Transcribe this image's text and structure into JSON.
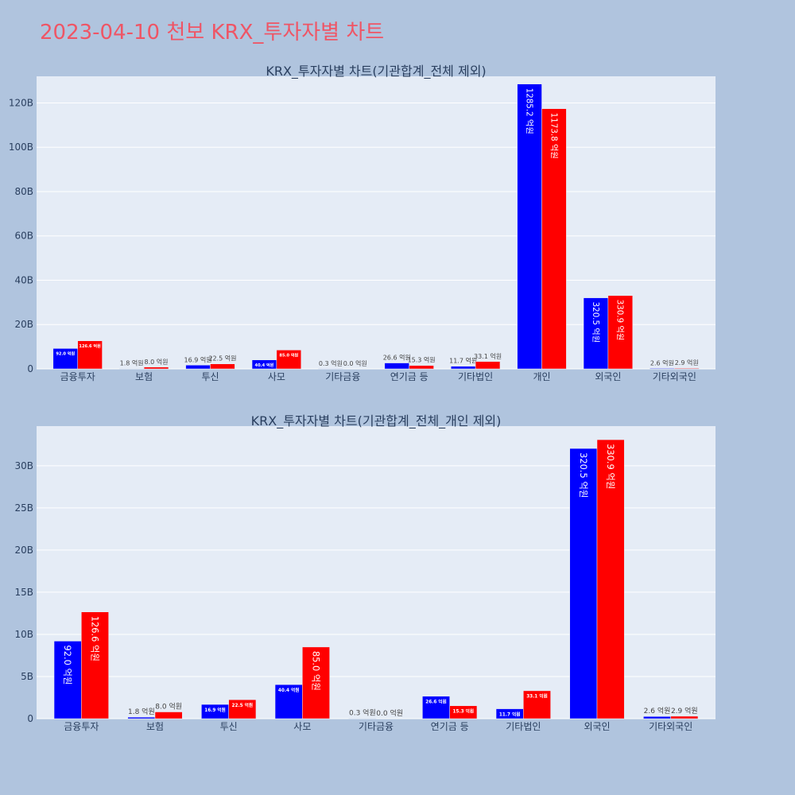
{
  "title": "2023-04-10 천보 KRX_투자자별 차트",
  "colors": {
    "background": "#b0c4de",
    "plot_bg": "#e5ecf6",
    "series_a": "#0000ff",
    "series_b": "#ff0000",
    "title": "#ef5565",
    "text": "#2a3f5f"
  },
  "chart_data": [
    {
      "type": "bar",
      "title": "KRX_투자자별 차트(기관합계_전체 제외)",
      "categories": [
        "금융투자",
        "보험",
        "투신",
        "사모",
        "기타금융",
        "연기금 등",
        "기타법인",
        "개인",
        "외국인",
        "기타외국인"
      ],
      "ylim": [
        0,
        132
      ],
      "yticks": [
        0,
        20,
        40,
        60,
        80,
        100,
        120
      ],
      "ytick_labels": [
        "0",
        "20B",
        "40B",
        "60B",
        "80B",
        "100B",
        "120B"
      ],
      "grid": true,
      "series": [
        {
          "values": [
            9.2,
            0.18,
            1.69,
            4.04,
            0.03,
            2.66,
            1.17,
            128.52,
            32.05,
            0.26
          ],
          "labels": [
            "92.0 억원",
            "1.8 억원",
            "16.9 억원",
            "40.4 억원",
            "0.3 억원",
            "26.6 억원",
            "11.7 억원",
            "1285.2 억원",
            "320.5 억원",
            "2.6 억원"
          ]
        },
        {
          "values": [
            12.66,
            0.8,
            2.25,
            8.5,
            0.0,
            1.53,
            3.31,
            117.38,
            33.09,
            0.29
          ],
          "labels": [
            "126.6 억원",
            "8.0 억원",
            "22.5 억원",
            "85.0 억원",
            "0.0 억원",
            "15.3 억원",
            "33.1 억원",
            "1173.8 억원",
            "330.9 억원",
            "2.9 억원"
          ]
        }
      ]
    },
    {
      "type": "bar",
      "title": "KRX_투자자별 차트(기관합계_전체_개인 제외)",
      "categories": [
        "금융투자",
        "보험",
        "투신",
        "사모",
        "기타금융",
        "연기금 등",
        "기타법인",
        "외국인",
        "기타외국인"
      ],
      "ylim": [
        0,
        34.7
      ],
      "yticks": [
        0,
        5,
        10,
        15,
        20,
        25,
        30
      ],
      "ytick_labels": [
        "0",
        "5B",
        "10B",
        "15B",
        "20B",
        "25B",
        "30B"
      ],
      "grid": true,
      "series": [
        {
          "values": [
            9.2,
            0.18,
            1.69,
            4.04,
            0.03,
            2.66,
            1.17,
            32.05,
            0.26
          ],
          "labels": [
            "92.0 억원",
            "1.8 억원",
            "16.9 억원",
            "40.4 억원",
            "0.3 억원",
            "26.6 억원",
            "11.7 억원",
            "320.5 억원",
            "2.6 억원"
          ]
        },
        {
          "values": [
            12.66,
            0.8,
            2.25,
            8.5,
            0.0,
            1.53,
            3.31,
            33.09,
            0.29
          ],
          "labels": [
            "126.6 억원",
            "8.0 억원",
            "22.5 억원",
            "85.0 억원",
            "0.0 억원",
            "15.3 억원",
            "33.1 억원",
            "330.9 억원",
            "2.9 억원"
          ]
        }
      ]
    }
  ]
}
